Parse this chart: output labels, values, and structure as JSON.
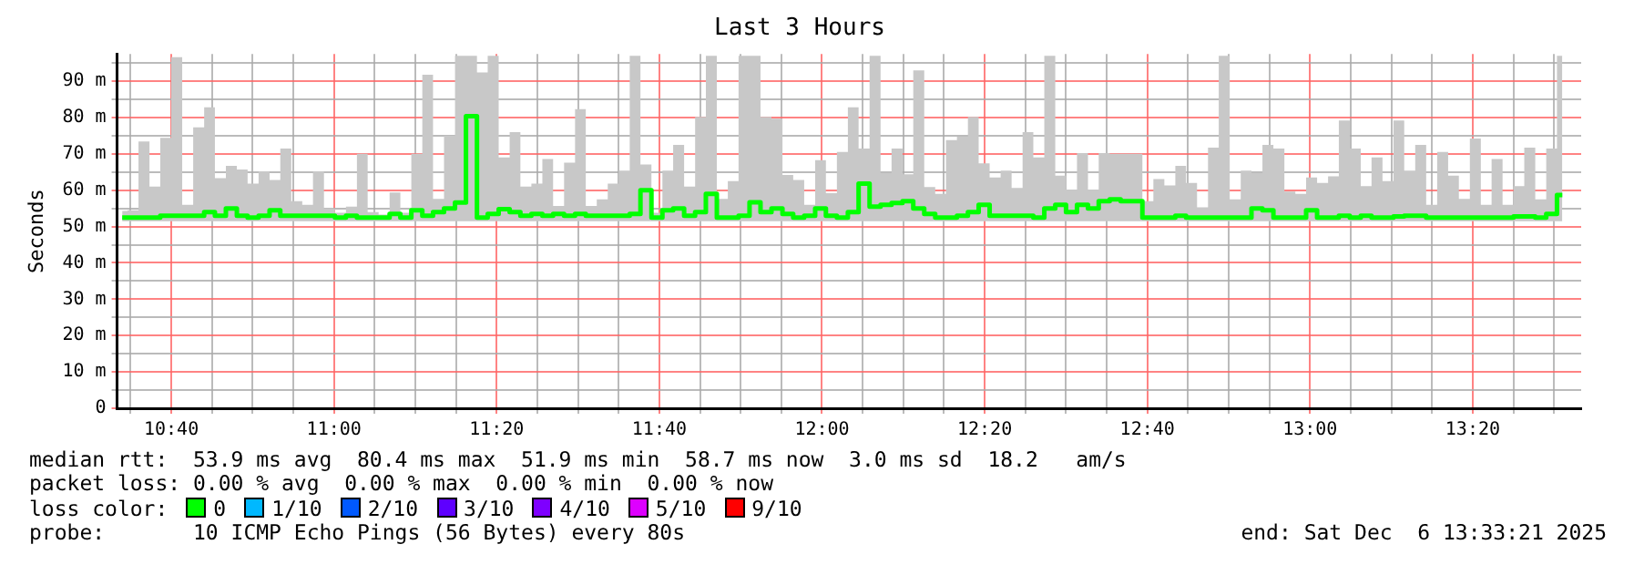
{
  "chart_data": {
    "type": "step",
    "title": "Last 3 Hours",
    "ylabel": "Seconds",
    "x": [
      10.566,
      10.588,
      10.611,
      10.633,
      10.655,
      10.678,
      10.7,
      10.723,
      10.745,
      10.767,
      10.79,
      10.812,
      10.834,
      10.857,
      10.879,
      10.901,
      10.924,
      10.946,
      10.968,
      10.991,
      11.013,
      11.036,
      11.058,
      11.08,
      11.103,
      11.125,
      11.147,
      11.17,
      11.192,
      11.214,
      11.237,
      11.259,
      11.282,
      11.304,
      11.326,
      11.349,
      11.371,
      11.393,
      11.416,
      11.438,
      11.46,
      11.483,
      11.505,
      11.527,
      11.55,
      11.572,
      11.595,
      11.617,
      11.639,
      11.662,
      11.684,
      11.706,
      11.729,
      11.751,
      11.773,
      11.796,
      11.818,
      11.84,
      11.863,
      11.885,
      11.908,
      11.93,
      11.952,
      11.975,
      11.997,
      12.019,
      12.042,
      12.064,
      12.086,
      12.109,
      12.131,
      12.154,
      12.176,
      12.198,
      12.221,
      12.243,
      12.265,
      12.288,
      12.31,
      12.332,
      12.355,
      12.377,
      12.4,
      12.422,
      12.444,
      12.467,
      12.489,
      12.511,
      12.534,
      12.556,
      12.578,
      12.601,
      12.623,
      12.645,
      12.668,
      12.69,
      12.713,
      12.735,
      12.757,
      12.78,
      12.802,
      12.824,
      12.847,
      12.869,
      12.891,
      12.914,
      12.936,
      12.959,
      12.981,
      13.003,
      13.026,
      13.048,
      13.07,
      13.093,
      13.115,
      13.137,
      13.16,
      13.182,
      13.204,
      13.227,
      13.249,
      13.272,
      13.294,
      13.316,
      13.339,
      13.361,
      13.383,
      13.406,
      13.428,
      13.45,
      13.473,
      13.495,
      13.517
    ],
    "series": [
      {
        "name": "0",
        "color": "#00ff00",
        "values": [
          52.5,
          52.5,
          52.5,
          52.5,
          53,
          53,
          53,
          53,
          54,
          53,
          55,
          53,
          52.5,
          53,
          54.5,
          53,
          53,
          53,
          53,
          53,
          52.5,
          53,
          52.5,
          52.5,
          52.5,
          53.5,
          52.5,
          54.5,
          53,
          54,
          55,
          56.6,
          80.4,
          52.5,
          53.5,
          54.8,
          54,
          53,
          53.5,
          53,
          53.5,
          53,
          53.5,
          53,
          53,
          53,
          53,
          53.5,
          60,
          52.5,
          54.5,
          55,
          53,
          54,
          59,
          52.5,
          52.5,
          53,
          56.7,
          54,
          55,
          53.5,
          52.5,
          53,
          55,
          53,
          52.5,
          54,
          61.8,
          55.5,
          56,
          56.5,
          57,
          55,
          53.5,
          52.5,
          52.5,
          53,
          54,
          56,
          53,
          53,
          53,
          53,
          52.5,
          55,
          56,
          54,
          56,
          55,
          57,
          57.5,
          57,
          57,
          52.5,
          52.5,
          52.5,
          53,
          52.5,
          52.5,
          52.5,
          52.5,
          52.5,
          52.5,
          55,
          54.5,
          52.5,
          52.5,
          52.5,
          54.5,
          52.5,
          52.5,
          53,
          52.5,
          53,
          52.5,
          52.5,
          52.8,
          53,
          53,
          52.5,
          52.5,
          52.5,
          52.5,
          52.5,
          52.5,
          52.5,
          52.5,
          52.8,
          52.8,
          52.5,
          53.5,
          58.7
        ],
        "lower": [
          51.5,
          51.5,
          51.5,
          51.5,
          51.5,
          51.5,
          51.5,
          51.5,
          51.5,
          51.5,
          51.5,
          51.5,
          51.5,
          51.5,
          51.5,
          51.5,
          51.5,
          51.5,
          51.5,
          51.5,
          51.5,
          51.5,
          51.5,
          51.5,
          51.5,
          51.5,
          51.5,
          51.5,
          51.5,
          51.5,
          51.5,
          51.5,
          51.5,
          51.5,
          51.5,
          51.5,
          51.5,
          51.5,
          51.5,
          51.5,
          51.5,
          51.5,
          51.5,
          51.5,
          51.5,
          51.5,
          51.5,
          51.5,
          51.5,
          51.5,
          51.5,
          51.5,
          51.5,
          51.5,
          51.5,
          51.5,
          51.5,
          51.5,
          51.5,
          51.5,
          51.5,
          51.5,
          51.5,
          51.5,
          51.5,
          51.5,
          51.5,
          51.5,
          51.5,
          51.5,
          51.5,
          51.5,
          51.5,
          51.5,
          51.5,
          51.5,
          51.5,
          51.5,
          51.5,
          51.5,
          51.5,
          51.5,
          51.5,
          51.5,
          51.5,
          51.5,
          51.5,
          51.5,
          51.5,
          51.5,
          51.5,
          51.5,
          51.5,
          51.5,
          51.5,
          51.5,
          51.5,
          51.5,
          51.5,
          51.5,
          51.5,
          51.5,
          51.5,
          51.5,
          51.5,
          51.5,
          51.5,
          51.5,
          51.5,
          51.5,
          51.5,
          51.5,
          51.5,
          51.5,
          51.5,
          51.5,
          51.5,
          51.5,
          51.5,
          51.5,
          51.5,
          51.5,
          51.5,
          51.5,
          51.5,
          51.5,
          51.5,
          51.5,
          51.5,
          51.5,
          51.5,
          51.5,
          51.5
        ],
        "upper": [
          54.3,
          54.5,
          73.4,
          61,
          74.4,
          96.6,
          56,
          77.3,
          82.8,
          63.3,
          66.7,
          65.7,
          61.8,
          65.2,
          62.8,
          71.5,
          57,
          56,
          65.2,
          55,
          53.8,
          55.5,
          70,
          54,
          53.3,
          59.4,
          53.8,
          70,
          91.8,
          57.6,
          75,
          97,
          97,
          92.4,
          97,
          69,
          76,
          61,
          61.8,
          68.6,
          55.7,
          67.6,
          82.3,
          55.7,
          57.5,
          61.8,
          65.4,
          97,
          67.1,
          53.8,
          65.4,
          72.5,
          61,
          80.2,
          97,
          57.6,
          62.5,
          97,
          97,
          80.2,
          79.7,
          64.2,
          62.8,
          56,
          68.3,
          59.2,
          70.5,
          82.8,
          71.5,
          97,
          64.7,
          71.5,
          64.4,
          93,
          60.9,
          59,
          73.8,
          74.7,
          80.2,
          67.4,
          63.5,
          65.4,
          60.6,
          76,
          69,
          97,
          64,
          60.2,
          70.2,
          60.2,
          70.2,
          70,
          70,
          70,
          57,
          63.1,
          61.3,
          66.7,
          62,
          55.3,
          71.7,
          97,
          57.5,
          65.4,
          64.7,
          72.5,
          71.5,
          59.6,
          59,
          63.5,
          62,
          63.8,
          79.2,
          71.5,
          61.1,
          69,
          62.5,
          79.2,
          65.4,
          72.5,
          56,
          70.5,
          64,
          57.6,
          74.2,
          56,
          68.6,
          56,
          61.1,
          71.7,
          57.5,
          71.5,
          97
        ]
      },
      {
        "name": "1/10",
        "color": "#00b8ff",
        "values": [
          null,
          null,
          null,
          null,
          null,
          null,
          null,
          null,
          null,
          null,
          null,
          null,
          null,
          null,
          null,
          null,
          null,
          null,
          null,
          null,
          null,
          null,
          null,
          null,
          null,
          null,
          null,
          null,
          null,
          null,
          null,
          null,
          null,
          null,
          null,
          null,
          null,
          null,
          null,
          null,
          null,
          null,
          null,
          null,
          null,
          null,
          null,
          null,
          null,
          null,
          null,
          null,
          null,
          null,
          null,
          null,
          null,
          null,
          null,
          null,
          null,
          null,
          null,
          null,
          null,
          null,
          null,
          null,
          null,
          null,
          null,
          null,
          null,
          null,
          null,
          null,
          null,
          null,
          null,
          null,
          null,
          null,
          null,
          null,
          null,
          null,
          null,
          null,
          null,
          null,
          null,
          null,
          null,
          null,
          null,
          null,
          null,
          null,
          null,
          null,
          null,
          null,
          null,
          null,
          null,
          null,
          null,
          null,
          null,
          null,
          null,
          null,
          null,
          null,
          null,
          null,
          null,
          null,
          null,
          null,
          null,
          null,
          null,
          null,
          null,
          null,
          null,
          null,
          null,
          null,
          null,
          null,
          null
        ]
      },
      {
        "name": "2/10",
        "color": "#0059ff",
        "values": [
          null,
          null,
          null,
          null,
          null,
          null,
          null,
          null,
          null,
          null,
          null,
          null,
          null,
          null,
          null,
          null,
          null,
          null,
          null,
          null,
          null,
          null,
          null,
          null,
          null,
          null,
          null,
          null,
          null,
          null,
          null,
          null,
          null,
          null,
          null,
          null,
          null,
          null,
          null,
          null,
          null,
          null,
          null,
          null,
          null,
          null,
          null,
          null,
          null,
          null,
          null,
          null,
          null,
          null,
          null,
          null,
          null,
          null,
          null,
          null,
          null,
          null,
          null,
          null,
          null,
          null,
          null,
          null,
          null,
          null,
          null,
          null,
          null,
          null,
          null,
          null,
          null,
          null,
          null,
          null,
          null,
          null,
          null,
          null,
          null,
          null,
          null,
          null,
          null,
          null,
          null,
          null,
          null,
          null,
          null,
          null,
          null,
          null,
          null,
          null,
          null,
          null,
          null,
          null,
          null,
          null,
          null,
          null,
          null,
          null,
          null,
          null,
          null,
          null,
          null,
          null,
          null,
          null,
          null,
          null,
          null,
          null,
          null,
          null,
          null,
          null,
          null,
          null,
          null,
          null,
          null,
          null,
          null
        ]
      },
      {
        "name": "3/10",
        "color": "#5e00ff",
        "values": [
          null,
          null,
          null,
          null,
          null,
          null,
          null,
          null,
          null,
          null,
          null,
          null,
          null,
          null,
          null,
          null,
          null,
          null,
          null,
          null,
          null,
          null,
          null,
          null,
          null,
          null,
          null,
          null,
          null,
          null,
          null,
          null,
          null,
          null,
          null,
          null,
          null,
          null,
          null,
          null,
          null,
          null,
          null,
          null,
          null,
          null,
          null,
          null,
          null,
          null,
          null,
          null,
          null,
          null,
          null,
          null,
          null,
          null,
          null,
          null,
          null,
          null,
          null,
          null,
          null,
          null,
          null,
          null,
          null,
          null,
          null,
          null,
          null,
          null,
          null,
          null,
          null,
          null,
          null,
          null,
          null,
          null,
          null,
          null,
          null,
          null,
          null,
          null,
          null,
          null,
          null,
          null,
          null,
          null,
          null,
          null,
          null,
          null,
          null,
          null,
          null,
          null,
          null,
          null,
          null,
          null,
          null,
          null,
          null,
          null,
          null,
          null,
          null,
          null,
          null,
          null,
          null,
          null,
          null,
          null,
          null,
          null,
          null,
          null,
          null,
          null,
          null,
          null,
          null,
          null,
          null,
          null,
          null
        ]
      },
      {
        "name": "4/10",
        "color": "#7e00ff",
        "values": [
          null,
          null,
          null,
          null,
          null,
          null,
          null,
          null,
          null,
          null,
          null,
          null,
          null,
          null,
          null,
          null,
          null,
          null,
          null,
          null,
          null,
          null,
          null,
          null,
          null,
          null,
          null,
          null,
          null,
          null,
          null,
          null,
          null,
          null,
          null,
          null,
          null,
          null,
          null,
          null,
          null,
          null,
          null,
          null,
          null,
          null,
          null,
          null,
          null,
          null,
          null,
          null,
          null,
          null,
          null,
          null,
          null,
          null,
          null,
          null,
          null,
          null,
          null,
          null,
          null,
          null,
          null,
          null,
          null,
          null,
          null,
          null,
          null,
          null,
          null,
          null,
          null,
          null,
          null,
          null,
          null,
          null,
          null,
          null,
          null,
          null,
          null,
          null,
          null,
          null,
          null,
          null,
          null,
          null,
          null,
          null,
          null,
          null,
          null,
          null,
          null,
          null,
          null,
          null,
          null,
          null,
          null,
          null,
          null,
          null,
          null,
          null,
          null,
          null,
          null,
          null,
          null,
          null,
          null,
          null,
          null,
          null,
          null,
          null,
          null,
          null,
          null,
          null,
          null,
          null,
          null,
          null,
          null
        ]
      },
      {
        "name": "5/10",
        "color": "#dd00ff",
        "values": [
          null,
          null,
          null,
          null,
          null,
          null,
          null,
          null,
          null,
          null,
          null,
          null,
          null,
          null,
          null,
          null,
          null,
          null,
          null,
          null,
          null,
          null,
          null,
          null,
          null,
          null,
          null,
          null,
          null,
          null,
          null,
          null,
          null,
          null,
          null,
          null,
          null,
          null,
          null,
          null,
          null,
          null,
          null,
          null,
          null,
          null,
          null,
          null,
          null,
          null,
          null,
          null,
          null,
          null,
          null,
          null,
          null,
          null,
          null,
          null,
          null,
          null,
          null,
          null,
          null,
          null,
          null,
          null,
          null,
          null,
          null,
          null,
          null,
          null,
          null,
          null,
          null,
          null,
          null,
          null,
          null,
          null,
          null,
          null,
          null,
          null,
          null,
          null,
          null,
          null,
          null,
          null,
          null,
          null,
          null,
          null,
          null,
          null,
          null,
          null,
          null,
          null,
          null,
          null,
          null,
          null,
          null,
          null,
          null,
          null,
          null,
          null,
          null,
          null,
          null,
          null,
          null,
          null,
          null,
          null,
          null,
          null,
          null,
          null,
          null,
          null,
          null,
          null,
          null,
          null,
          null,
          null,
          null
        ]
      },
      {
        "name": "9/10",
        "color": "#ff0000",
        "values": [
          null,
          null,
          null,
          null,
          null,
          null,
          null,
          null,
          null,
          null,
          null,
          null,
          null,
          null,
          null,
          null,
          null,
          null,
          null,
          null,
          null,
          null,
          null,
          null,
          null,
          null,
          null,
          null,
          null,
          null,
          null,
          null,
          null,
          null,
          null,
          null,
          null,
          null,
          null,
          null,
          null,
          null,
          null,
          null,
          null,
          null,
          null,
          null,
          null,
          null,
          null,
          null,
          null,
          null,
          null,
          null,
          null,
          null,
          null,
          null,
          null,
          null,
          null,
          null,
          null,
          null,
          null,
          null,
          null,
          null,
          null,
          null,
          null,
          null,
          null,
          null,
          null,
          null,
          null,
          null,
          null,
          null,
          null,
          null,
          null,
          null,
          null,
          null,
          null,
          null,
          null,
          null,
          null,
          null,
          null,
          null,
          null,
          null,
          null,
          null,
          null,
          null,
          null,
          null,
          null,
          null,
          null,
          null,
          null,
          null,
          null,
          null,
          null,
          null,
          null,
          null,
          null,
          null,
          null,
          null,
          null,
          null,
          null,
          null,
          null,
          null,
          null,
          null,
          null,
          null,
          null,
          null,
          null
        ]
      }
    ],
    "xlim": [
      10.5556,
      13.5556
    ],
    "xticks": [
      {
        "value": 10.5833,
        "label": null
      },
      {
        "value": 10.6667,
        "label": "10:40"
      },
      {
        "value": 10.75,
        "label": null
      },
      {
        "value": 10.8333,
        "label": null
      },
      {
        "value": 10.9167,
        "label": null
      },
      {
        "value": 11,
        "label": "11:00"
      },
      {
        "value": 11.0833,
        "label": null
      },
      {
        "value": 11.1667,
        "label": null
      },
      {
        "value": 11.25,
        "label": null
      },
      {
        "value": 11.3333,
        "label": "11:20"
      },
      {
        "value": 11.4167,
        "label": null
      },
      {
        "value": 11.5,
        "label": null
      },
      {
        "value": 11.5833,
        "label": null
      },
      {
        "value": 11.6667,
        "label": "11:40"
      },
      {
        "value": 11.75,
        "label": null
      },
      {
        "value": 11.8333,
        "label": null
      },
      {
        "value": 11.9167,
        "label": null
      },
      {
        "value": 12,
        "label": "12:00"
      },
      {
        "value": 12.0833,
        "label": null
      },
      {
        "value": 12.1667,
        "label": null
      },
      {
        "value": 12.25,
        "label": null
      },
      {
        "value": 12.3333,
        "label": "12:20"
      },
      {
        "value": 12.4167,
        "label": null
      },
      {
        "value": 12.5,
        "label": null
      },
      {
        "value": 12.5833,
        "label": null
      },
      {
        "value": 12.6667,
        "label": "12:40"
      },
      {
        "value": 12.75,
        "label": null
      },
      {
        "value": 12.8333,
        "label": null
      },
      {
        "value": 12.9167,
        "label": null
      },
      {
        "value": 13,
        "label": "13:00"
      },
      {
        "value": 13.0833,
        "label": null
      },
      {
        "value": 13.1667,
        "label": null
      },
      {
        "value": 13.25,
        "label": null
      },
      {
        "value": 13.3333,
        "label": "13:20"
      },
      {
        "value": 13.4167,
        "label": null
      },
      {
        "value": 13.5,
        "label": null
      }
    ],
    "ylim": [
      0,
      97.5
    ],
    "yticks": [
      0,
      {
        "value": 5,
        "label": null
      },
      {
        "value": 10,
        "label": "10 m"
      },
      {
        "value": 15,
        "label": null
      },
      {
        "value": 20,
        "label": "20 m"
      },
      {
        "value": 25,
        "label": null
      },
      {
        "value": 30,
        "label": "30 m"
      },
      {
        "value": 35,
        "label": null
      },
      {
        "value": 40,
        "label": "40 m"
      },
      {
        "value": 45,
        "label": null
      },
      {
        "value": 50,
        "label": "50 m"
      },
      {
        "value": 55,
        "label": null
      },
      {
        "value": 60,
        "label": "60 m"
      },
      {
        "value": 65,
        "label": null
      },
      {
        "value": 70,
        "label": "70 m"
      },
      {
        "value": 75,
        "label": null
      },
      {
        "value": 80,
        "label": "80 m"
      },
      {
        "value": 85,
        "label": null
      },
      {
        "value": 90,
        "label": "90 m"
      },
      {
        "value": 95,
        "label": null
      }
    ],
    "grid": true,
    "legend": "bottom",
    "annotations": [
      "median rtt:  53.9 ms avg  80.4 ms max  51.9 ms min  58.7 ms now  3.0 ms sd  18.2   am/s",
      "packet loss: 0.00 % avg  0.00 % max  0.00 % min  0.00 % now",
      "loss color:",
      "probe:       10 ICMP Echo Pings (56 Bytes) every 80s",
      "end: Sat Dec  6 13:33:21 2025"
    ]
  }
}
